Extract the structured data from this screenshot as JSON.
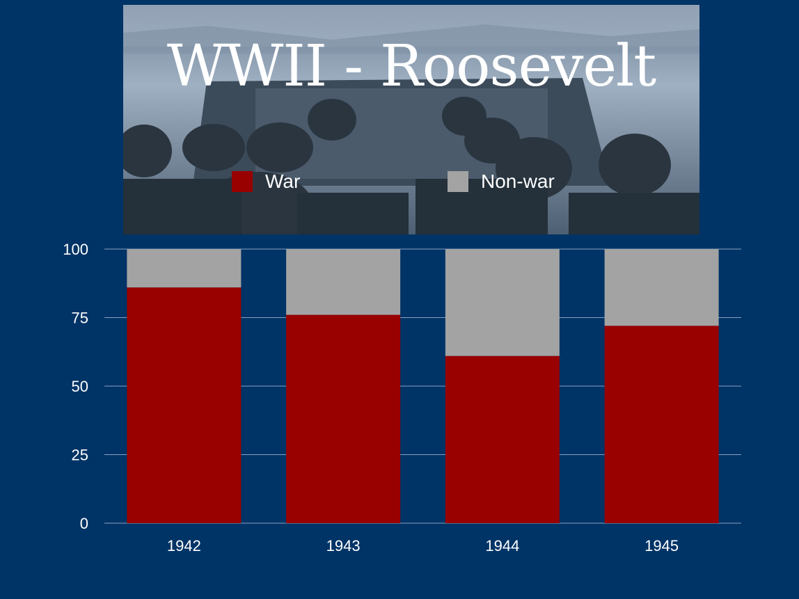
{
  "slide": {
    "title": "WWII - Roosevelt"
  },
  "colors": {
    "background": "#003366",
    "war": "#990000",
    "non_war": "#a3a3a3",
    "grid": "#8aa3c2"
  },
  "photo": {
    "icon": "soldiers-landing-craft-photo"
  },
  "legend": [
    {
      "label": "War",
      "color": "#990000"
    },
    {
      "label": "Non-war",
      "color": "#a3a3a3"
    }
  ],
  "chart_data": {
    "type": "bar",
    "stacked": true,
    "categories": [
      "1942",
      "1943",
      "1944",
      "1945"
    ],
    "series": [
      {
        "name": "War",
        "values": [
          86,
          76,
          61,
          72
        ],
        "color": "#990000"
      },
      {
        "name": "Non-war",
        "values": [
          14,
          24,
          39,
          28
        ],
        "color": "#a3a3a3"
      }
    ],
    "title": "WWII - Roosevelt",
    "xlabel": "",
    "ylabel": "",
    "ylim": [
      0,
      100
    ],
    "yticks": [
      "0",
      "25",
      "50",
      "75",
      "100"
    ],
    "grid": true,
    "legend_position": "top"
  }
}
